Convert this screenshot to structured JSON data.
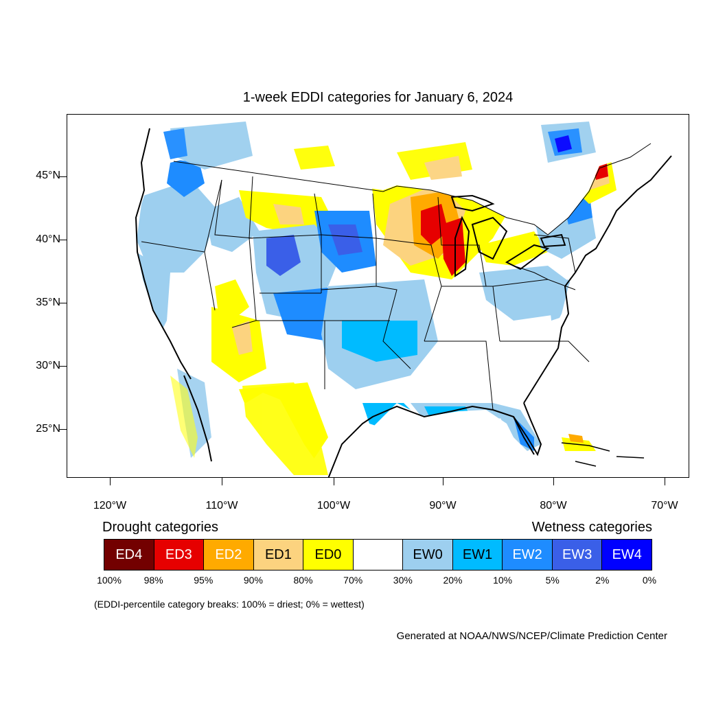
{
  "title": "1-week EDDI categories for January 6, 2024",
  "lat_labels": [
    "45°N",
    "40°N",
    "35°N",
    "30°N",
    "25°N"
  ],
  "lon_labels": [
    "120°W",
    "110°W",
    "100°W",
    "90°W",
    "80°W",
    "70°W"
  ],
  "legend": {
    "drought_heading": "Drought categories",
    "wetness_heading": "Wetness categories",
    "categories": [
      {
        "label": "ED4",
        "color": "#730000",
        "text_color": "#ffffff"
      },
      {
        "label": "ED3",
        "color": "#e60000",
        "text_color": "#ffffff"
      },
      {
        "label": "ED2",
        "color": "#ffaa00",
        "text_color": "#ffffff"
      },
      {
        "label": "ED1",
        "color": "#fcd37f",
        "text_color": "#000000"
      },
      {
        "label": "ED0",
        "color": "#ffff00",
        "text_color": "#000000"
      },
      {
        "label": "",
        "color": "#ffffff",
        "text_color": "#000000"
      },
      {
        "label": "EW0",
        "color": "#9dcfef",
        "text_color": "#000000"
      },
      {
        "label": "EW1",
        "color": "#00bbff",
        "text_color": "#000000"
      },
      {
        "label": "EW2",
        "color": "#1e8cff",
        "text_color": "#ffffff"
      },
      {
        "label": "EW3",
        "color": "#3a5fe8",
        "text_color": "#ffffff"
      },
      {
        "label": "EW4",
        "color": "#0000ff",
        "text_color": "#ffffff"
      }
    ],
    "percentiles": [
      "100%",
      "98%",
      "95%",
      "90%",
      "80%",
      "70%",
      "30%",
      "20%",
      "10%",
      "5%",
      "2%",
      "0%"
    ]
  },
  "note": "(EDDI-percentile category breaks: 100% = driest; 0% = wettest)",
  "credit": "Generated at NOAA/NWS/NCEP/Climate Prediction Center"
}
